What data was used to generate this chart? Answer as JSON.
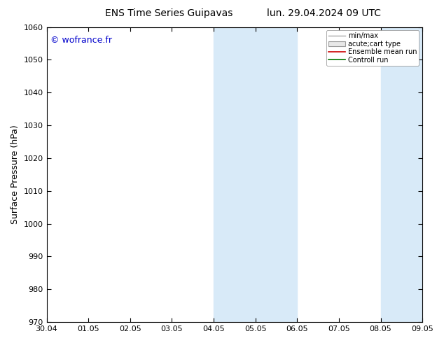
{
  "title_left": "ENS Time Series Guipavas",
  "title_right": "lun. 29.04.2024 09 UTC",
  "ylabel": "Surface Pressure (hPa)",
  "ylim": [
    970,
    1060
  ],
  "yticks": [
    970,
    980,
    990,
    1000,
    1010,
    1020,
    1030,
    1040,
    1050,
    1060
  ],
  "xtick_labels": [
    "30.04",
    "01.05",
    "02.05",
    "03.05",
    "04.05",
    "05.05",
    "06.05",
    "07.05",
    "08.05",
    "09.05"
  ],
  "watermark": "© wofrance.fr",
  "watermark_color": "#0000cc",
  "shaded_bands": [
    {
      "xstart": 4,
      "xend": 5,
      "color": "#d8eaf8"
    },
    {
      "xstart": 5,
      "xend": 6,
      "color": "#d8eaf8"
    },
    {
      "xstart": 8,
      "xend": 9,
      "color": "#d8eaf8"
    }
  ],
  "legend_entries": [
    {
      "label": "min/max",
      "type": "minmax",
      "color": "#aaaaaa"
    },
    {
      "label": "acute;cart type",
      "type": "box",
      "color": "#cccccc"
    },
    {
      "label": "Ensemble mean run",
      "type": "line",
      "color": "#cc0000"
    },
    {
      "label": "Controll run",
      "type": "line",
      "color": "#007700"
    }
  ],
  "background_color": "#ffffff",
  "plot_bg_color": "#ffffff",
  "border_color": "#000000",
  "title_fontsize": 10,
  "tick_fontsize": 8,
  "ylabel_fontsize": 9
}
